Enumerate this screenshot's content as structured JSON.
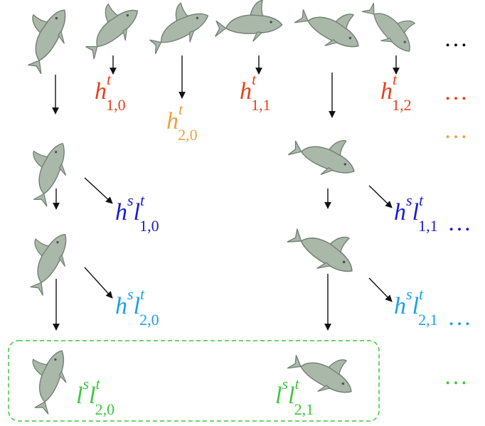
{
  "colors": {
    "row1": "#e8401c",
    "row2": "#f0a040",
    "dark_blue": "#1a1ad0",
    "light_blue": "#1aa0e8",
    "green": "#3cc83c",
    "black": "#111111",
    "fish_fill": "#aab8aa",
    "fish_stroke": "#6f7f70"
  },
  "labels": {
    "h_1_0": {
      "base": "h",
      "sup": "t",
      "sub": "1,0"
    },
    "h_1_1": {
      "base": "h",
      "sup": "t",
      "sub": "1,1"
    },
    "h_1_2": {
      "base": "h",
      "sup": "t",
      "sub": "1,2"
    },
    "h_2_0": {
      "base": "h",
      "sup": "t",
      "sub": "2,0"
    },
    "hl_1_0": {
      "base1": "h",
      "sup1": "s",
      "base2": "l",
      "sup2": "t",
      "sub": "1,0"
    },
    "hl_1_1": {
      "base1": "h",
      "sup1": "s",
      "base2": "l",
      "sup2": "t",
      "sub": "1,1"
    },
    "hl_2_0": {
      "base1": "h",
      "sup1": "s",
      "base2": "l",
      "sup2": "t",
      "sub": "2,0"
    },
    "hl_2_1": {
      "base1": "h",
      "sup1": "s",
      "base2": "l",
      "sup2": "t",
      "sub": "2,1"
    },
    "ll_2_0": {
      "base1": "l",
      "sup1": "s",
      "base2": "l",
      "sup2": "t",
      "sub": "2,0"
    },
    "ll_2_1": {
      "base1": "l",
      "sup1": "s",
      "base2": "l",
      "sup2": "t",
      "sub": "2,1"
    }
  },
  "ellipses": {
    "row0": "…",
    "row1": "…",
    "row2": "…",
    "row3": "…",
    "row4": "…",
    "row5": "…"
  },
  "icons": [
    "dolphin-icon"
  ]
}
